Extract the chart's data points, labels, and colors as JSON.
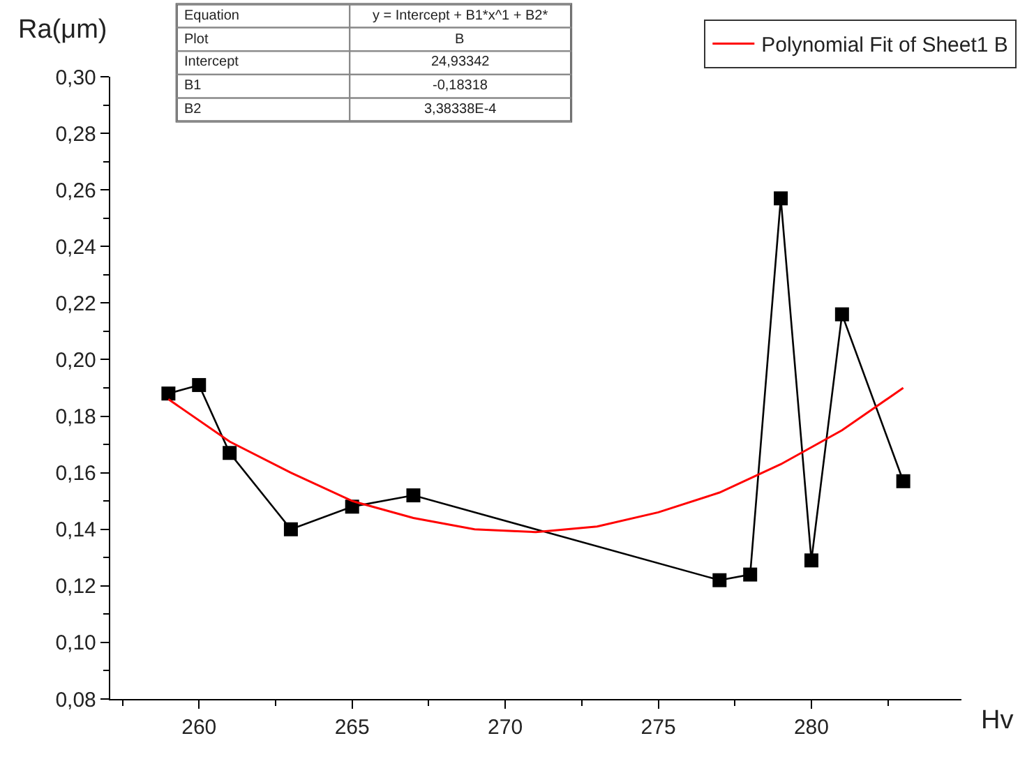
{
  "chart_data": {
    "type": "line",
    "xlabel": "Hv",
    "ylabel": "Ra(μm)",
    "x": [
      259,
      260,
      261,
      263,
      265,
      267,
      277,
      278,
      279,
      280,
      281,
      283
    ],
    "series": [
      {
        "color": "#000000",
        "marker": "square",
        "values": [
          0.188,
          0.191,
          0.167,
          0.14,
          0.148,
          0.152,
          0.122,
          0.124,
          0.257,
          0.129,
          0.216,
          0.157
        ]
      },
      {
        "name": "Polynomial Fit of Sheet1 B",
        "color": "#ff0000",
        "marker": "none",
        "x": [
          259,
          261,
          263,
          265,
          267,
          269,
          271,
          273,
          275,
          277,
          279,
          281,
          283
        ],
        "values": [
          0.186,
          0.171,
          0.16,
          0.15,
          0.144,
          0.14,
          0.139,
          0.141,
          0.146,
          0.153,
          0.163,
          0.175,
          0.19
        ]
      }
    ],
    "xlim": [
      257.1,
      284.9
    ],
    "xticks": [
      260,
      265,
      270,
      275,
      280
    ],
    "ylim": [
      0.08,
      0.3
    ],
    "yticks": [
      {
        "value": 0.08,
        "label": "0,08"
      },
      {
        "value": 0.1,
        "label": "0,10"
      },
      {
        "value": 0.12,
        "label": "0,12"
      },
      {
        "value": 0.14,
        "label": "0,14"
      },
      {
        "value": 0.16,
        "label": "0,16"
      },
      {
        "value": 0.18,
        "label": "0,18"
      },
      {
        "value": 0.2,
        "label": "0,20"
      },
      {
        "value": 0.22,
        "label": "0,22"
      },
      {
        "value": 0.24,
        "label": "0,24"
      },
      {
        "value": 0.26,
        "label": "0,26"
      },
      {
        "value": 0.28,
        "label": "0,28"
      },
      {
        "value": 0.3,
        "label": "0,30"
      }
    ],
    "annotations": [
      "Equation",
      "y = Intercept + B1*x^1 + B2*",
      "Plot",
      "B",
      "Intercept",
      "24,93342",
      "B1",
      "-0,18318",
      "B2",
      "3,38338E-4"
    ],
    "legend": "top right",
    "line_style": "solid"
  }
}
